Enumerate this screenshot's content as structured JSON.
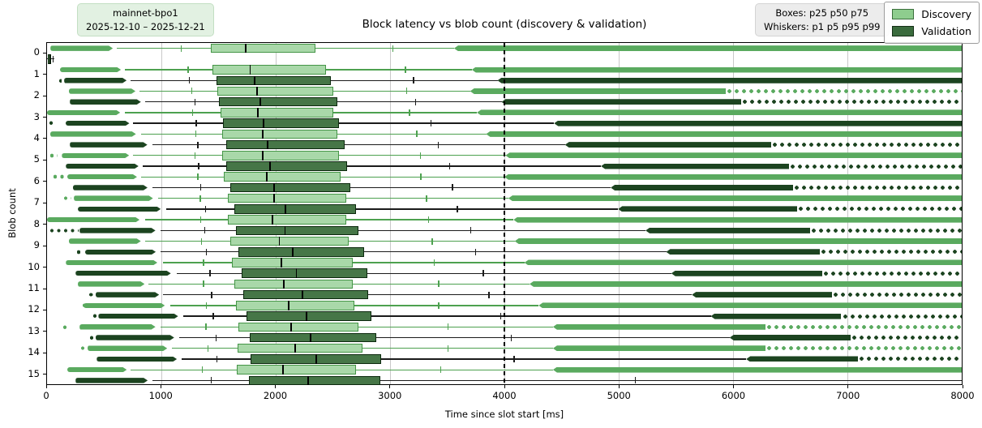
{
  "header": {
    "title": "Block latency vs blob count (discovery & validation)",
    "left_badge": {
      "line1": "mainnet-bpo1",
      "line2": "2025-12-10 – 2025-12-21"
    },
    "right_badge": {
      "line1": "Boxes: p25 p50 p75",
      "line2": "Whiskers: p1 p5 p95 p99"
    }
  },
  "axes": {
    "xlabel": "Time since slot start [ms]",
    "ylabel": "Blob count",
    "xlim": [
      0,
      8000
    ],
    "x_ticks": [
      "0",
      "1000",
      "2000",
      "3000",
      "4000",
      "5000",
      "6000",
      "7000",
      "8000"
    ],
    "x_tick_values": [
      0,
      1000,
      2000,
      3000,
      4000,
      5000,
      6000,
      7000,
      8000
    ],
    "y_ticks": [
      "0",
      "1",
      "2",
      "3",
      "4",
      "5",
      "6",
      "7",
      "8",
      "9",
      "10",
      "11",
      "12",
      "13",
      "14",
      "15"
    ],
    "grid_values": [
      1000,
      2000,
      3000,
      4000,
      5000,
      6000,
      7000
    ]
  },
  "refline": {
    "value": 4000,
    "style": "dashed",
    "color": "#000000"
  },
  "legend": {
    "items": [
      {
        "label": "Discovery",
        "fill": "#8ecd8e",
        "edge": "#3a703c"
      },
      {
        "label": "Validation",
        "fill": "#3a6b3d",
        "edge": "#142f16"
      }
    ]
  },
  "chart_data": {
    "type": "grouped_horizontal_boxplot",
    "title": "Block latency vs blob count (discovery & validation)",
    "xlabel": "Time since slot start [ms]",
    "ylabel": "Blob count",
    "units": "ms",
    "xlim": [
      0,
      8000
    ],
    "box_percentiles": [
      "p25",
      "p50",
      "p75"
    ],
    "whisker_percentiles": [
      "p1",
      "p5",
      "p95",
      "p99"
    ],
    "categories": [
      0,
      1,
      2,
      3,
      4,
      5,
      6,
      7,
      8,
      9,
      10,
      11,
      12,
      13,
      14,
      15
    ],
    "series": [
      {
        "name": "Discovery",
        "key": "discovery",
        "color_line": "#4da14f",
        "color_fill": "#a9d8a9",
        "color_edge": "#459547",
        "color_cluster": "#5aaa5f",
        "rows": [
          {
            "flo": 30,
            "p1": 610,
            "p5": 1170,
            "p25": 1430,
            "p50": 1730,
            "p75": 2350,
            "p95": 3020,
            "p99": 3560,
            "hi": 8000,
            "tail": "solid"
          },
          {
            "flo": 110,
            "p1": 680,
            "p5": 1230,
            "p25": 1450,
            "p50": 1770,
            "p75": 2440,
            "p95": 3130,
            "p99": 3715,
            "hi": 8000,
            "tail": "solid"
          },
          {
            "flo": 190,
            "p1": 810,
            "p5": 1260,
            "p25": 1490,
            "p50": 1830,
            "p75": 2500,
            "p95": 3140,
            "p99": 3700,
            "hi": 8000,
            "tail": "dots"
          },
          {
            "flo": 0,
            "p1": 680,
            "p5": 1270,
            "p25": 1520,
            "p50": 1835,
            "p75": 2500,
            "p95": 3165,
            "p99": 3760,
            "hi": 8000,
            "tail": "solid"
          },
          {
            "flo": 25,
            "p1": 825,
            "p5": 1295,
            "p25": 1530,
            "p50": 1880,
            "p75": 2535,
            "p95": 3230,
            "p99": 3840,
            "hi": 8000,
            "tail": "solid"
          },
          {
            "flo": 130,
            "p1": 755,
            "p5": 1290,
            "p25": 1530,
            "p50": 1880,
            "p75": 2555,
            "p95": 3260,
            "p99": 4010,
            "hi": 8000,
            "tail": "solid",
            "ldots": [
              15,
              95
            ]
          },
          {
            "flo": 175,
            "p1": 825,
            "p5": 1315,
            "p25": 1545,
            "p50": 1915,
            "p75": 2570,
            "p95": 3265,
            "p99": 4000,
            "hi": 8000,
            "tail": "solid",
            "ldots": [
              45,
              150
            ]
          },
          {
            "flo": 235,
            "p1": 970,
            "p5": 1335,
            "p25": 1585,
            "p50": 1980,
            "p75": 2615,
            "p95": 3315,
            "p99": 4035,
            "hi": 8000,
            "tail": "solid",
            "ldots": [
              135,
              215
            ]
          },
          {
            "flo": 0,
            "p1": 860,
            "p5": 1340,
            "p25": 1580,
            "p50": 1965,
            "p75": 2615,
            "p95": 3330,
            "p99": 4080,
            "hi": 8000,
            "tail": "solid"
          },
          {
            "flo": 190,
            "p1": 860,
            "p5": 1345,
            "p25": 1600,
            "p50": 2025,
            "p75": 2640,
            "p95": 3365,
            "p99": 4090,
            "hi": 8000,
            "tail": "solid"
          },
          {
            "flo": 165,
            "p1": 1015,
            "p5": 1365,
            "p25": 1620,
            "p50": 2045,
            "p75": 2670,
            "p95": 3380,
            "p99": 4175,
            "hi": 8000,
            "tail": "solid"
          },
          {
            "flo": 270,
            "p1": 890,
            "p5": 1365,
            "p25": 1640,
            "p50": 2065,
            "p75": 2670,
            "p95": 3420,
            "p99": 4220,
            "hi": 8000,
            "tail": "solid"
          },
          {
            "flo": 320,
            "p1": 1075,
            "p5": 1390,
            "p25": 1650,
            "p50": 2105,
            "p75": 2690,
            "p95": 3420,
            "p99": 4300,
            "hi": 8000,
            "tail": "solid",
            "ldots": [
              295,
              330
            ]
          },
          {
            "flo": 285,
            "p1": 990,
            "p5": 1385,
            "p25": 1675,
            "p50": 2130,
            "p75": 2720,
            "p95": 3500,
            "p99": 4425,
            "hi": 8000,
            "tail": "dots",
            "ldots": [
              130,
              170
            ]
          },
          {
            "flo": 355,
            "p1": 1095,
            "p5": 1405,
            "p25": 1670,
            "p50": 2165,
            "p75": 2760,
            "p95": 3500,
            "p99": 4425,
            "hi": 8000,
            "tail": "dots",
            "ldots": [
              285,
              355
            ]
          },
          {
            "flo": 175,
            "p1": 730,
            "p5": 1355,
            "p25": 1660,
            "p50": 2060,
            "p75": 2700,
            "p95": 3440,
            "p99": 4425,
            "hi": 8000,
            "tail": "solid"
          }
        ]
      },
      {
        "name": "Validation",
        "key": "validation",
        "color_line": "#1b1b1b",
        "color_fill": "#467647",
        "color_edge": "#0c290e",
        "color_cluster": "#1c4420",
        "rows": [
          {
            "flo": 0,
            "p1": 0,
            "p5": 5,
            "p25": 8,
            "p50": 18,
            "p75": 35,
            "p95": 50,
            "p99": 60,
            "hi": 60,
            "tail": "solid"
          },
          {
            "flo": 150,
            "p1": 730,
            "p5": 1240,
            "p25": 1480,
            "p50": 1810,
            "p75": 2480,
            "p95": 3200,
            "p99": 3940,
            "hi": 8000,
            "tail": "solid",
            "ldots": [
              90,
              130
            ]
          },
          {
            "flo": 200,
            "p1": 860,
            "p5": 1290,
            "p25": 1505,
            "p50": 1860,
            "p75": 2540,
            "p95": 3220,
            "p99": 3975,
            "hi": 8000,
            "tail": "dots"
          },
          {
            "flo": 160,
            "p1": 755,
            "p5": 1300,
            "p25": 1540,
            "p50": 1885,
            "p75": 2550,
            "p95": 3355,
            "p99": 4435,
            "hi": 8000,
            "tail": "solid",
            "ldots": [
              10,
              60
            ]
          },
          {
            "flo": 200,
            "p1": 920,
            "p5": 1315,
            "p25": 1565,
            "p50": 1925,
            "p75": 2605,
            "p95": 3415,
            "p99": 4530,
            "hi": 8000,
            "tail": "dots"
          },
          {
            "flo": 165,
            "p1": 840,
            "p5": 1320,
            "p25": 1565,
            "p50": 1945,
            "p75": 2625,
            "p95": 3515,
            "p99": 4845,
            "hi": 8000,
            "tail": "dots"
          },
          {
            "flo": 225,
            "p1": 920,
            "p5": 1340,
            "p25": 1600,
            "p50": 1980,
            "p75": 2650,
            "p95": 3540,
            "p99": 4930,
            "hi": 8000,
            "tail": "dots"
          },
          {
            "flo": 270,
            "p1": 1040,
            "p5": 1380,
            "p25": 1640,
            "p50": 2080,
            "p75": 2705,
            "p95": 3585,
            "p99": 4995,
            "hi": 8000,
            "tail": "dots"
          },
          {
            "flo": 285,
            "p1": 990,
            "p5": 1375,
            "p25": 1650,
            "p50": 2075,
            "p75": 2725,
            "p95": 3700,
            "p99": 5235,
            "hi": 8000,
            "tail": "dots",
            "ldots": [
              15,
              275
            ]
          },
          {
            "flo": 330,
            "p1": 990,
            "p5": 1390,
            "p25": 1675,
            "p50": 2140,
            "p75": 2770,
            "p95": 3745,
            "p99": 5415,
            "hi": 8000,
            "tail": "dots",
            "ldots": [
              245,
              320
            ]
          },
          {
            "flo": 250,
            "p1": 1135,
            "p5": 1420,
            "p25": 1700,
            "p50": 2175,
            "p75": 2800,
            "p95": 3810,
            "p99": 5460,
            "hi": 8000,
            "tail": "dots"
          },
          {
            "flo": 425,
            "p1": 1015,
            "p5": 1435,
            "p25": 1715,
            "p50": 2230,
            "p75": 2805,
            "p95": 3860,
            "p99": 5640,
            "hi": 8000,
            "tail": "dots",
            "ldots": [
              355,
              420
            ]
          },
          {
            "flo": 450,
            "p1": 1190,
            "p5": 1450,
            "p25": 1745,
            "p50": 2265,
            "p75": 2835,
            "p95": 3965,
            "p99": 5805,
            "hi": 8000,
            "tail": "dots",
            "ldots": [
              390,
              445
            ]
          },
          {
            "flo": 425,
            "p1": 1155,
            "p5": 1475,
            "p25": 1770,
            "p50": 2300,
            "p75": 2880,
            "p95": 4055,
            "p99": 5970,
            "hi": 8000,
            "tail": "dots",
            "ldots": [
              360,
              420
            ]
          },
          {
            "flo": 435,
            "p1": 1180,
            "p5": 1480,
            "p25": 1780,
            "p50": 2350,
            "p75": 2920,
            "p95": 4080,
            "p99": 6115,
            "hi": 8000,
            "tail": "dots"
          },
          {
            "flo": 250,
            "p1": 920,
            "p5": 1430,
            "p25": 1765,
            "p50": 2280,
            "p75": 2915,
            "p95": 5140,
            "p99": 8000,
            "hi": 8000,
            "tail": "solid"
          }
        ]
      }
    ]
  }
}
